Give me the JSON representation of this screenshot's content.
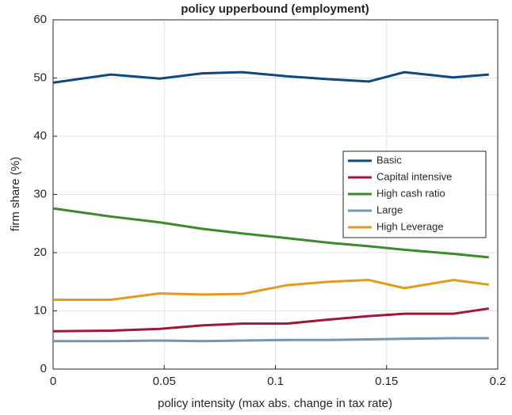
{
  "chart_data": {
    "type": "line",
    "title": "policy upperbound (employment)",
    "x_label": "policy intensity (max abs. change in tax rate)",
    "y_label": "firm share (%)",
    "x": [
      0,
      0.026,
      0.048,
      0.067,
      0.085,
      0.105,
      0.124,
      0.142,
      0.158,
      0.18,
      0.196
    ],
    "series": [
      {
        "name": "Basic",
        "color": "#0e4a7b",
        "values": [
          49.2,
          50.6,
          49.9,
          50.8,
          51.0,
          50.3,
          49.8,
          49.4,
          51.0,
          50.1,
          50.6
        ]
      },
      {
        "name": "Capital intensive",
        "color": "#a0173a",
        "values": [
          6.5,
          6.6,
          6.9,
          7.5,
          7.8,
          7.8,
          8.5,
          9.1,
          9.5,
          9.5,
          10.4
        ]
      },
      {
        "name": "High cash ratio",
        "color": "#3d8a2a",
        "values": [
          27.6,
          26.2,
          25.2,
          24.1,
          23.3,
          22.5,
          21.7,
          21.1,
          20.5,
          19.8,
          19.2
        ]
      },
      {
        "name": "Large",
        "color": "#7297b3",
        "values": [
          4.8,
          4.8,
          4.9,
          4.8,
          4.9,
          5.0,
          5.0,
          5.1,
          5.2,
          5.3,
          5.3
        ]
      },
      {
        "name": "High Leverage",
        "color": "#e39a1f",
        "values": [
          11.9,
          11.9,
          13.0,
          12.8,
          12.9,
          14.4,
          15.0,
          15.3,
          13.9,
          15.3,
          14.5
        ]
      }
    ],
    "xlim": [
      0,
      0.2
    ],
    "xticks": [
      0,
      0.05,
      0.1,
      0.15,
      0.2
    ],
    "ylim": [
      0,
      60
    ],
    "yticks": [
      0,
      10,
      20,
      30,
      40,
      50,
      60
    ],
    "grid": true,
    "legend": "east"
  }
}
